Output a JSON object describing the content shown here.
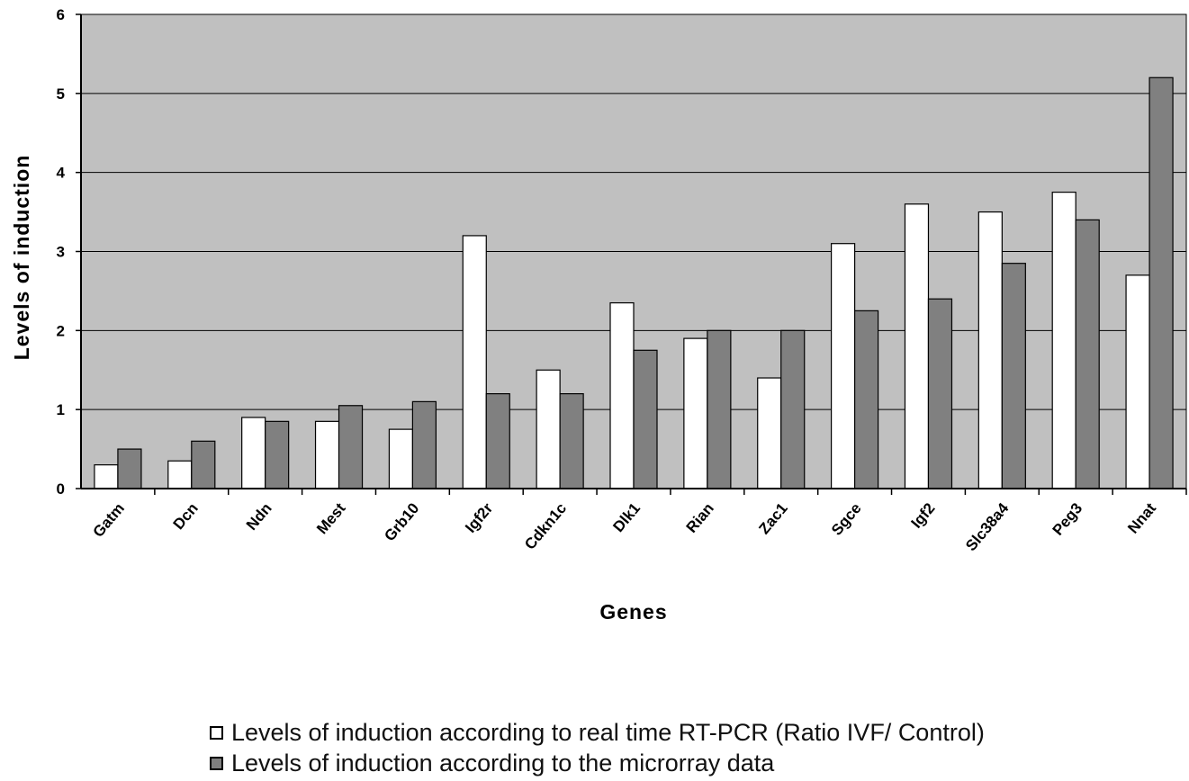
{
  "chart_data": {
    "type": "bar",
    "title": "",
    "xlabel": "Genes",
    "ylabel": "Levels of induction",
    "ylim": [
      0,
      6
    ],
    "yticks": [
      "0",
      "1",
      "2",
      "3",
      "4",
      "5",
      "6"
    ],
    "grid": true,
    "legend_position": "bottom",
    "categories": [
      "Gatm",
      "Dcn",
      "Ndn",
      "Mest",
      "Grb10",
      "Igf2r",
      "Cdkn1c",
      "Dlk1",
      "Rian",
      "Zac1",
      "Sgce",
      "Igf2",
      "Slc38a4",
      "Peg3",
      "Nnat"
    ],
    "series": [
      {
        "name": "Levels of induction according to real time RT-PCR (Ratio IVF/ Control)",
        "color": "#ffffff",
        "values": [
          0.3,
          0.35,
          0.9,
          0.85,
          0.75,
          3.2,
          1.5,
          2.35,
          1.9,
          1.4,
          3.1,
          3.6,
          3.5,
          3.75,
          2.7
        ]
      },
      {
        "name": "Levels of induction according to the microrray data",
        "color": "#808080",
        "values": [
          0.5,
          0.6,
          0.85,
          1.05,
          1.1,
          1.2,
          1.2,
          1.75,
          2.0,
          2.0,
          2.25,
          2.4,
          2.85,
          3.4,
          5.2
        ]
      }
    ],
    "plot_background": "#c0c0c0"
  }
}
